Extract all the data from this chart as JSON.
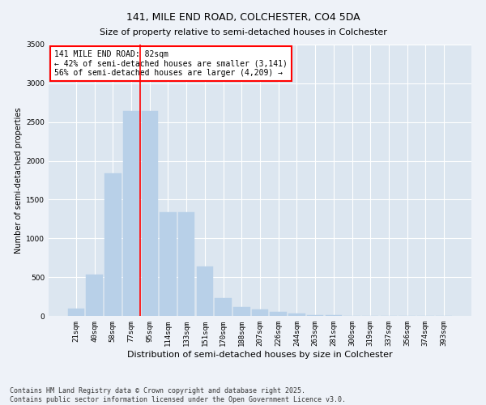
{
  "title": "141, MILE END ROAD, COLCHESTER, CO4 5DA",
  "subtitle": "Size of property relative to semi-detached houses in Colchester",
  "xlabel": "Distribution of semi-detached houses by size in Colchester",
  "ylabel": "Number of semi-detached properties",
  "categories": [
    "21sqm",
    "40sqm",
    "58sqm",
    "77sqm",
    "95sqm",
    "114sqm",
    "133sqm",
    "151sqm",
    "170sqm",
    "188sqm",
    "207sqm",
    "226sqm",
    "244sqm",
    "263sqm",
    "281sqm",
    "300sqm",
    "319sqm",
    "337sqm",
    "356sqm",
    "374sqm",
    "393sqm"
  ],
  "values": [
    90,
    530,
    1840,
    2640,
    2640,
    1340,
    1340,
    640,
    230,
    120,
    80,
    55,
    30,
    15,
    8,
    4,
    3,
    2,
    1,
    1,
    0
  ],
  "bar_color": "#b8d0e8",
  "bar_edge_color": "#8ab4d4",
  "vline_position": 3.5,
  "vline_color": "red",
  "annotation_text": "141 MILE END ROAD: 82sqm\n← 42% of semi-detached houses are smaller (3,141)\n56% of semi-detached houses are larger (4,209) →",
  "annotation_box_color": "white",
  "annotation_box_edge_color": "red",
  "ylim": [
    0,
    3500
  ],
  "yticks": [
    0,
    500,
    1000,
    1500,
    2000,
    2500,
    3000,
    3500
  ],
  "footer_text": "Contains HM Land Registry data © Crown copyright and database right 2025.\nContains public sector information licensed under the Open Government Licence v3.0.",
  "background_color": "#eef2f8",
  "plot_background_color": "#dce6f0",
  "grid_color": "white",
  "title_fontsize": 9,
  "subtitle_fontsize": 8,
  "tick_fontsize": 6.5,
  "ylabel_fontsize": 7,
  "xlabel_fontsize": 8,
  "footer_fontsize": 6,
  "annotation_fontsize": 7
}
